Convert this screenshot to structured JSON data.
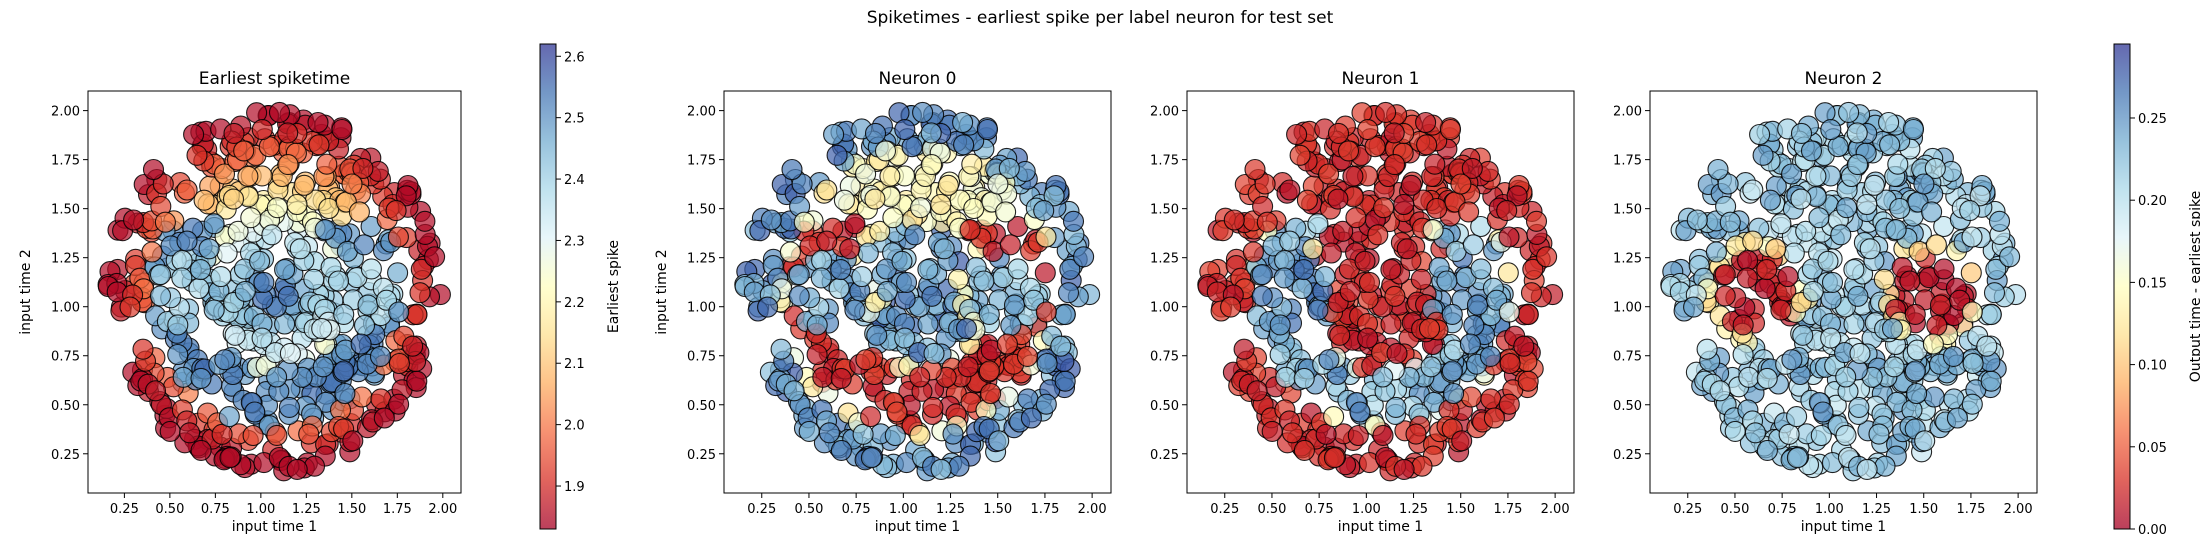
{
  "chart_data": {
    "suptitle": "Spiketimes - earliest spike per label neuron for test set",
    "type": "scatter",
    "x_range": [
      0.05,
      2.1
    ],
    "y_range": [
      0.05,
      2.1
    ],
    "x_ticks": [
      "0.25",
      "0.50",
      "0.75",
      "1.00",
      "1.25",
      "1.50",
      "1.75",
      "2.00"
    ],
    "y_ticks": [
      "0.25",
      "0.50",
      "0.75",
      "1.00",
      "1.25",
      "1.50",
      "1.75",
      "2.00"
    ],
    "colormap": "RdYlBu",
    "marker_edge_color": "#000000",
    "panels": [
      {
        "title": "Earliest spiketime",
        "xlabel": "input time 1",
        "ylabel": "input time 2",
        "quantity": "earliest",
        "colorbar": {
          "label": "Earliest spike",
          "range": [
            1.83,
            2.62
          ],
          "ticks": [
            "1.9",
            "2.0",
            "2.1",
            "2.2",
            "2.3",
            "2.4",
            "2.5",
            "2.6"
          ]
        }
      },
      {
        "title": "Neuron 0",
        "xlabel": "input time 1",
        "ylabel": "input time 2",
        "quantity": "neuron0"
      },
      {
        "title": "Neuron 1",
        "xlabel": "input time 1",
        "ylabel": "",
        "quantity": "neuron1"
      },
      {
        "title": "Neuron 2",
        "xlabel": "input time 1",
        "ylabel": "",
        "quantity": "neuron2"
      }
    ],
    "shared_colorbar": {
      "label": "Output time - earliest spike",
      "range": [
        0.0,
        0.295
      ],
      "ticks": [
        "0.00",
        "0.05",
        "0.10",
        "0.15",
        "0.20",
        "0.25"
      ]
    },
    "dataset": {
      "center": [
        1.075,
        1.075
      ],
      "radius": 0.92,
      "left_eye": {
        "center": [
          0.62,
          1.07
        ],
        "radius": 0.22
      },
      "right_eye": {
        "center": [
          1.55,
          1.07
        ],
        "radius": 0.22
      },
      "smile_band": {
        "inner_radius": 0.4,
        "outer_radius": 0.7
      },
      "approx_points": 620
    }
  }
}
